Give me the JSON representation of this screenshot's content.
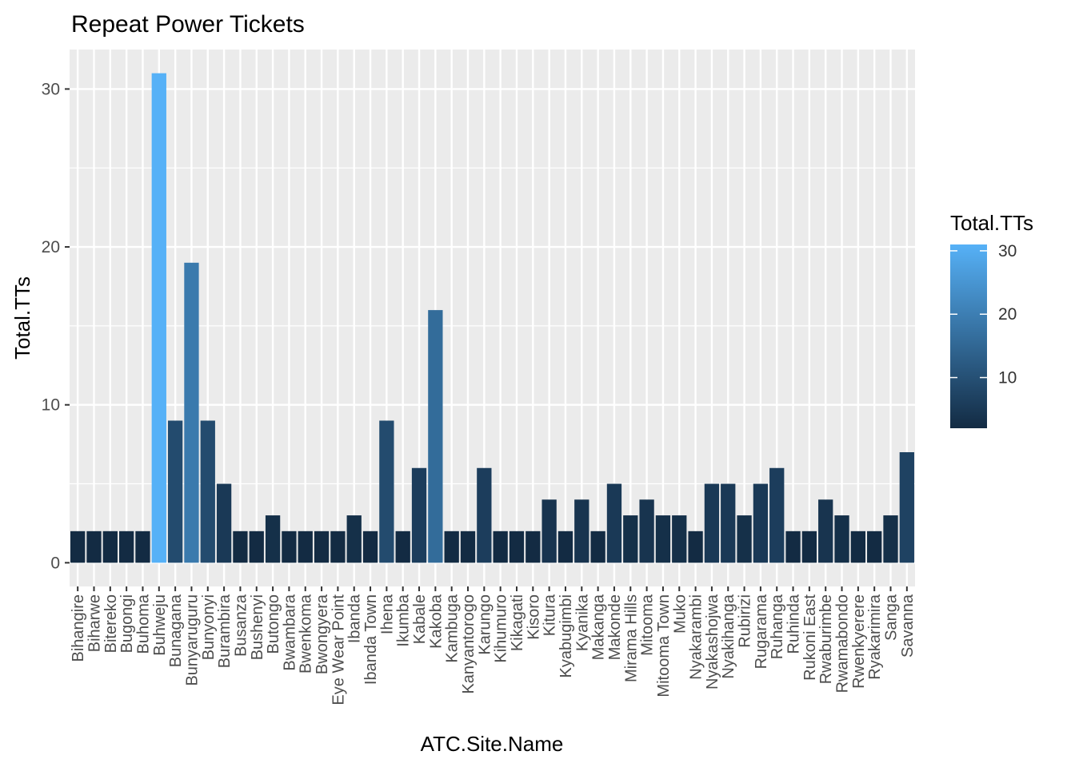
{
  "chart_data": {
    "type": "bar",
    "title": "Repeat Power Tickets",
    "xlabel": "ATC.Site.Name",
    "ylabel": "Total.TTs",
    "ylim": [
      -1.5,
      32.5
    ],
    "yticks": [
      0,
      10,
      20,
      30
    ],
    "grid": true,
    "legend": {
      "title": "Total.TTs",
      "placement": "right",
      "ticks": [
        10,
        20,
        30
      ],
      "range": [
        2,
        31
      ],
      "color_low": "#132B43",
      "color_high": "#56B1F7"
    },
    "categories": [
      "Bihangire",
      "Biharwe",
      "Bitereko",
      "Bugongi",
      "Buhoma",
      "Buhweju",
      "Bunagana",
      "Bunyaruguru",
      "Bunyonyi",
      "Burambira",
      "Busanza",
      "Bushenyi",
      "Butongo",
      "Bwambara",
      "Bwenkoma",
      "Bwongyera",
      "Eye Wear Point",
      "Ibanda",
      "Ibanda Town",
      "Ihena",
      "Ikumba",
      "Kabale",
      "Kakoba",
      "Kambuga",
      "Kanyantorogo",
      "Karungo",
      "Kihumuro",
      "Kikagati",
      "Kisoro",
      "Kitura",
      "Kyabugimbi",
      "Kyanika",
      "Makanga",
      "Makonde",
      "Mirama Hills",
      "Mitooma",
      "Mitooma Town",
      "Muko",
      "Nyakarambi",
      "Nyakashojwa",
      "Nyakihanga",
      "Rubirizi",
      "Rugarama",
      "Ruhanga",
      "Ruhinda",
      "Rukoni East",
      "Rwaburimbe",
      "Rwamabondo",
      "Rwenkyerere",
      "Ryakarimira",
      "Sanga",
      "Savanna"
    ],
    "values": [
      2,
      2,
      2,
      2,
      2,
      31,
      9,
      19,
      9,
      5,
      2,
      2,
      3,
      2,
      2,
      2,
      2,
      3,
      2,
      9,
      2,
      6,
      16,
      2,
      2,
      6,
      2,
      2,
      2,
      4,
      2,
      4,
      2,
      5,
      3,
      4,
      3,
      3,
      2,
      5,
      5,
      3,
      5,
      6,
      2,
      2,
      4,
      3,
      2,
      2,
      3,
      7
    ]
  }
}
